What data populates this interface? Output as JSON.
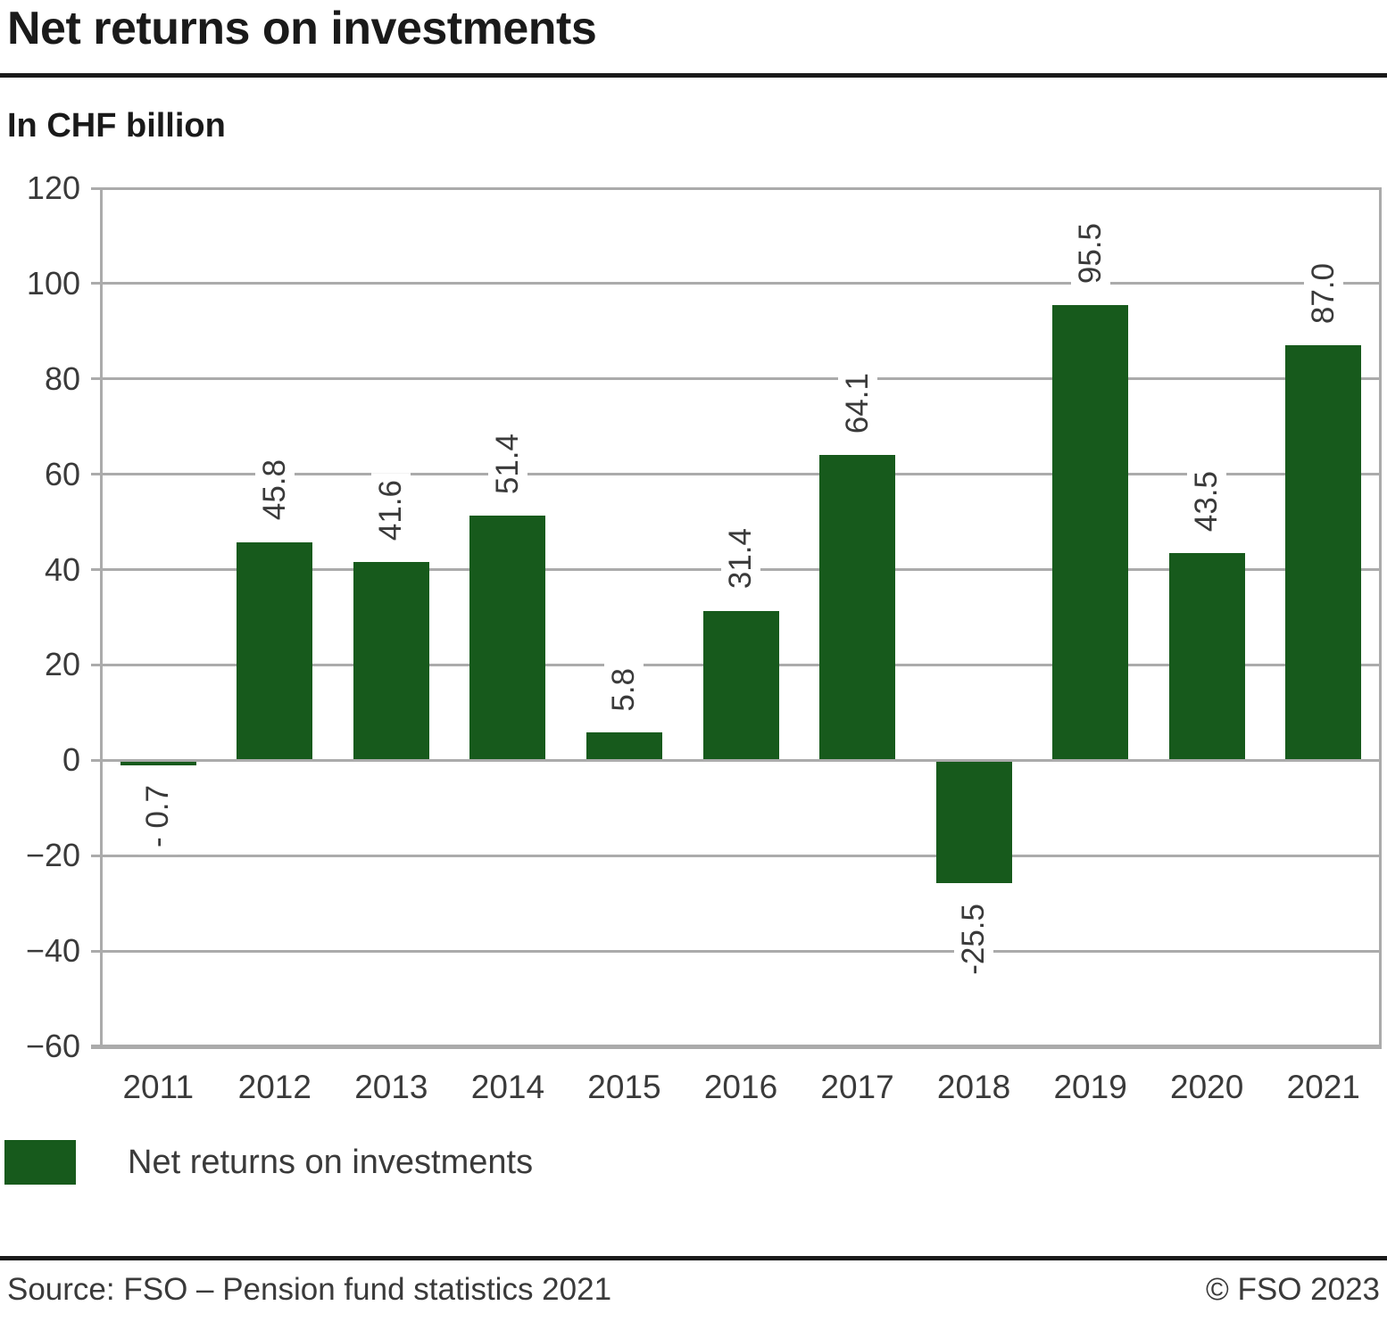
{
  "header": {
    "title": "Net returns on investments",
    "subtitle": "In CHF billion"
  },
  "chart_data": {
    "type": "bar",
    "title": "Net returns on investments",
    "ylabel": "In CHF billion",
    "categories": [
      "2011",
      "2012",
      "2013",
      "2014",
      "2015",
      "2016",
      "2017",
      "2018",
      "2019",
      "2020",
      "2021"
    ],
    "values": [
      -0.7,
      45.8,
      41.6,
      51.4,
      5.8,
      31.4,
      64.1,
      -25.5,
      95.5,
      43.5,
      87.0
    ],
    "value_labels": [
      "- 0.7",
      "45.8",
      "41.6",
      "51.4",
      "5.8",
      "31.4",
      "64.1",
      "-25.5",
      "95.5",
      "43.5",
      "87.0"
    ],
    "ylim": [
      -60,
      120
    ],
    "ytick_step": 20,
    "ytick_labels": [
      "120",
      "100",
      "80",
      "60",
      "40",
      "20",
      "0",
      "−20",
      "−40",
      "−60"
    ],
    "grid": true,
    "bar_color": "#175a1c",
    "legend": {
      "position": "bottom",
      "items": [
        {
          "label": "Net returns on investments",
          "color": "#175a1c"
        }
      ]
    }
  },
  "footer": {
    "source": "Source: FSO – Pension fund statistics 2021",
    "copyright": "© FSO 2023"
  }
}
